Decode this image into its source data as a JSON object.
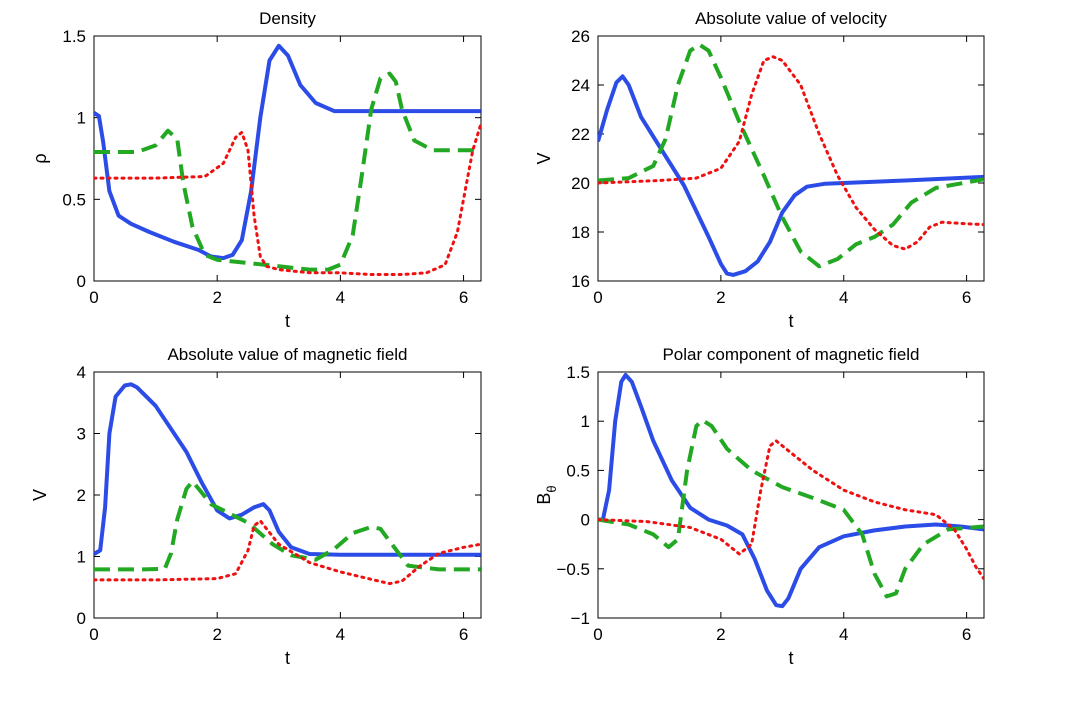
{
  "colors": {
    "blue": "#2b4ce6",
    "green": "#22a822",
    "red": "#ee1111"
  },
  "chart_data": [
    {
      "type": "line",
      "title": "Density",
      "xlabel": "t",
      "ylabel": "ρ",
      "ylabel_sub": "",
      "xlim": [
        0,
        6.2832
      ],
      "ylim": [
        0,
        1.5
      ],
      "xticks": [
        "0",
        "2",
        "4",
        "6"
      ],
      "yticks": [
        "0",
        "0.5",
        "1",
        "1.5"
      ],
      "series": [
        {
          "color": "#2b4ce6",
          "style": "solid",
          "x": [
            0,
            0.08,
            0.15,
            0.25,
            0.4,
            0.6,
            0.9,
            1.3,
            1.7,
            1.9,
            2.1,
            2.25,
            2.4,
            2.55,
            2.7,
            2.85,
            3.0,
            3.15,
            3.35,
            3.6,
            3.9,
            4.3,
            5.0,
            6.28
          ],
          "y": [
            1.03,
            1.01,
            0.85,
            0.55,
            0.4,
            0.35,
            0.3,
            0.24,
            0.19,
            0.15,
            0.14,
            0.16,
            0.25,
            0.55,
            1.0,
            1.35,
            1.44,
            1.38,
            1.2,
            1.09,
            1.04,
            1.04,
            1.04,
            1.04
          ]
        },
        {
          "color": "#22a822",
          "style": "dashed",
          "x": [
            0,
            0.7,
            1.0,
            1.2,
            1.35,
            1.45,
            1.6,
            1.8,
            2.0,
            2.5,
            3.0,
            3.5,
            3.8,
            4.0,
            4.2,
            4.35,
            4.5,
            4.65,
            4.8,
            4.9,
            5.0,
            5.2,
            5.5,
            6.28
          ],
          "y": [
            0.79,
            0.79,
            0.83,
            0.92,
            0.87,
            0.6,
            0.33,
            0.16,
            0.13,
            0.11,
            0.09,
            0.07,
            0.07,
            0.1,
            0.28,
            0.65,
            1.05,
            1.24,
            1.27,
            1.22,
            1.05,
            0.86,
            0.8,
            0.8
          ]
        },
        {
          "color": "#ee1111",
          "style": "dotted",
          "x": [
            0,
            1.0,
            1.8,
            2.1,
            2.3,
            2.4,
            2.5,
            2.6,
            2.7,
            2.8,
            3.0,
            3.5,
            4.0,
            4.5,
            5.0,
            5.4,
            5.7,
            5.9,
            6.05,
            6.15,
            6.28
          ],
          "y": [
            0.63,
            0.63,
            0.64,
            0.72,
            0.88,
            0.91,
            0.8,
            0.4,
            0.15,
            0.09,
            0.07,
            0.05,
            0.05,
            0.04,
            0.04,
            0.05,
            0.1,
            0.3,
            0.6,
            0.8,
            0.96
          ]
        }
      ]
    },
    {
      "type": "line",
      "title": "Absolute value of velocity",
      "xlabel": "t",
      "ylabel": "V",
      "ylabel_sub": "",
      "xlim": [
        0,
        6.2832
      ],
      "ylim": [
        16,
        26
      ],
      "xticks": [
        "0",
        "2",
        "4",
        "6"
      ],
      "yticks": [
        "16",
        "18",
        "20",
        "22",
        "24",
        "26"
      ],
      "series": [
        {
          "color": "#2b4ce6",
          "style": "solid",
          "x": [
            0,
            0.15,
            0.3,
            0.4,
            0.5,
            0.7,
            1.0,
            1.4,
            1.8,
            2.0,
            2.1,
            2.2,
            2.4,
            2.6,
            2.8,
            3.0,
            3.2,
            3.4,
            3.7,
            4.0,
            5.0,
            6.28
          ],
          "y": [
            21.7,
            23.0,
            24.1,
            24.35,
            24.0,
            22.7,
            21.5,
            19.9,
            17.8,
            16.7,
            16.3,
            16.25,
            16.4,
            16.8,
            17.6,
            18.8,
            19.5,
            19.85,
            19.97,
            20.0,
            20.1,
            20.25
          ]
        },
        {
          "color": "#22a822",
          "style": "dashed",
          "x": [
            0,
            0.5,
            0.9,
            1.1,
            1.3,
            1.5,
            1.65,
            1.8,
            2.0,
            2.3,
            2.7,
            3.0,
            3.3,
            3.6,
            3.9,
            4.2,
            4.5,
            4.8,
            5.1,
            5.5,
            6.28
          ],
          "y": [
            20.1,
            20.2,
            20.7,
            21.8,
            24.0,
            25.4,
            25.65,
            25.4,
            24.3,
            22.5,
            20.3,
            18.6,
            17.2,
            16.6,
            16.9,
            17.5,
            17.8,
            18.3,
            19.2,
            19.8,
            20.15
          ]
        },
        {
          "color": "#ee1111",
          "style": "dotted",
          "x": [
            0,
            1.0,
            1.6,
            2.0,
            2.3,
            2.5,
            2.7,
            2.85,
            3.0,
            3.3,
            3.6,
            3.9,
            4.2,
            4.5,
            4.8,
            5.0,
            5.2,
            5.4,
            5.6,
            5.9,
            6.28
          ],
          "y": [
            20.0,
            20.1,
            20.2,
            20.6,
            21.7,
            23.6,
            25.0,
            25.15,
            25.0,
            24.0,
            22.0,
            20.3,
            19.0,
            18.1,
            17.45,
            17.3,
            17.6,
            18.2,
            18.4,
            18.35,
            18.3
          ]
        }
      ]
    },
    {
      "type": "line",
      "title": "Absolute value of magnetic field",
      "xlabel": "t",
      "ylabel": "V",
      "ylabel_sub": "",
      "xlim": [
        0,
        6.2832
      ],
      "ylim": [
        0,
        4
      ],
      "xticks": [
        "0",
        "2",
        "4",
        "6"
      ],
      "yticks": [
        "0",
        "1",
        "2",
        "3",
        "4"
      ],
      "series": [
        {
          "color": "#2b4ce6",
          "style": "solid",
          "x": [
            0,
            0.1,
            0.18,
            0.25,
            0.35,
            0.5,
            0.6,
            0.7,
            1.0,
            1.5,
            1.75,
            2.0,
            2.2,
            2.4,
            2.6,
            2.75,
            2.85,
            3.0,
            3.2,
            3.5,
            4.0,
            5.0,
            6.28
          ],
          "y": [
            1.04,
            1.1,
            1.8,
            3.0,
            3.6,
            3.78,
            3.8,
            3.75,
            3.45,
            2.7,
            2.2,
            1.75,
            1.62,
            1.68,
            1.8,
            1.85,
            1.75,
            1.4,
            1.15,
            1.04,
            1.03,
            1.03,
            1.03
          ]
        },
        {
          "color": "#22a822",
          "style": "dashed",
          "x": [
            0,
            0.8,
            1.15,
            1.25,
            1.35,
            1.5,
            1.6,
            1.7,
            1.9,
            2.2,
            2.5,
            2.9,
            3.2,
            3.6,
            3.9,
            4.2,
            4.5,
            4.65,
            4.8,
            5.1,
            5.6,
            6.28
          ],
          "y": [
            0.79,
            0.79,
            0.8,
            1.05,
            1.6,
            2.1,
            2.22,
            2.1,
            1.85,
            1.7,
            1.55,
            1.2,
            1.02,
            0.95,
            1.12,
            1.38,
            1.48,
            1.45,
            1.25,
            0.85,
            0.79,
            0.79
          ]
        },
        {
          "color": "#ee1111",
          "style": "dotted",
          "x": [
            0,
            1.0,
            2.0,
            2.3,
            2.5,
            2.6,
            2.7,
            2.8,
            3.0,
            3.5,
            4.0,
            4.5,
            4.8,
            5.0,
            5.3,
            5.6,
            6.0,
            6.28
          ],
          "y": [
            0.62,
            0.62,
            0.64,
            0.72,
            1.1,
            1.5,
            1.58,
            1.45,
            1.2,
            0.9,
            0.75,
            0.63,
            0.56,
            0.6,
            0.85,
            1.05,
            1.15,
            1.2
          ]
        }
      ]
    },
    {
      "type": "line",
      "title": "Polar component of magnetic field",
      "xlabel": "t",
      "ylabel": "B",
      "ylabel_sub": "θ",
      "xlim": [
        0,
        6.2832
      ],
      "ylim": [
        -1,
        1.5
      ],
      "xticks": [
        "0",
        "2",
        "4",
        "6"
      ],
      "yticks": [
        "−1",
        "−0.5",
        "0",
        "0.5",
        "1",
        "1.5"
      ],
      "series": [
        {
          "color": "#2b4ce6",
          "style": "solid",
          "x": [
            0,
            0.08,
            0.18,
            0.28,
            0.38,
            0.45,
            0.55,
            0.7,
            0.9,
            1.2,
            1.5,
            1.8,
            2.1,
            2.35,
            2.55,
            2.75,
            2.9,
            3.0,
            3.1,
            3.3,
            3.6,
            4.0,
            4.5,
            5.0,
            5.5,
            5.9,
            6.28
          ],
          "y": [
            0.0,
            0.0,
            0.3,
            1.0,
            1.4,
            1.47,
            1.4,
            1.15,
            0.8,
            0.4,
            0.12,
            0.0,
            -0.06,
            -0.15,
            -0.4,
            -0.72,
            -0.87,
            -0.88,
            -0.8,
            -0.5,
            -0.28,
            -0.17,
            -0.11,
            -0.07,
            -0.05,
            -0.07,
            -0.1
          ]
        },
        {
          "color": "#22a822",
          "style": "dashed",
          "x": [
            0,
            0.5,
            0.9,
            1.15,
            1.3,
            1.45,
            1.6,
            1.7,
            1.85,
            2.1,
            2.5,
            3.0,
            3.5,
            4.0,
            4.3,
            4.5,
            4.7,
            4.85,
            5.0,
            5.3,
            5.7,
            6.28
          ],
          "y": [
            0.0,
            -0.05,
            -0.15,
            -0.28,
            -0.2,
            0.5,
            0.95,
            1.01,
            0.95,
            0.72,
            0.5,
            0.33,
            0.22,
            0.1,
            -0.15,
            -0.55,
            -0.78,
            -0.75,
            -0.5,
            -0.25,
            -0.1,
            -0.07
          ]
        },
        {
          "color": "#ee1111",
          "style": "dotted",
          "x": [
            0,
            0.8,
            1.5,
            2.0,
            2.3,
            2.5,
            2.65,
            2.8,
            2.9,
            3.1,
            3.5,
            4.0,
            4.5,
            5.0,
            5.5,
            5.8,
            6.0,
            6.15,
            6.28
          ],
          "y": [
            0.0,
            -0.02,
            -0.08,
            -0.2,
            -0.35,
            -0.25,
            0.3,
            0.75,
            0.8,
            0.7,
            0.5,
            0.3,
            0.18,
            0.1,
            0.05,
            -0.1,
            -0.3,
            -0.48,
            -0.6
          ]
        }
      ]
    }
  ]
}
